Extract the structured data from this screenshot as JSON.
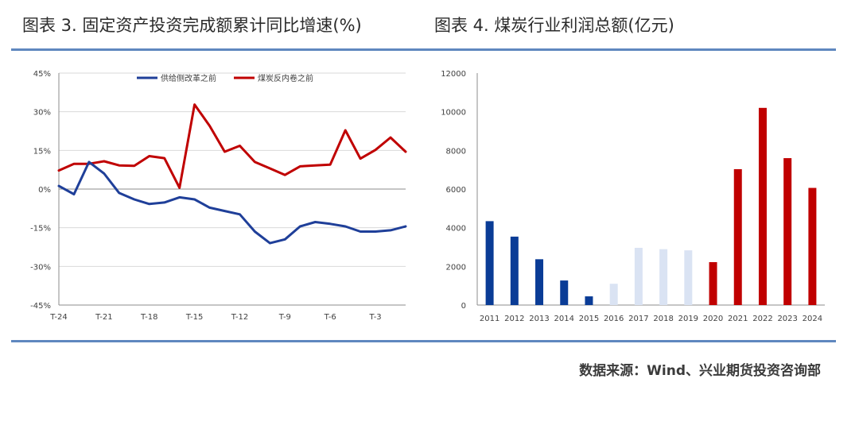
{
  "titles": {
    "left": "图表 3. 固定资产投资完成额累计同比增速(%)",
    "right": "图表 4. 煤炭行业利润总额(亿元)"
  },
  "source": "数据来源：Wind、兴业期货投资咨询部",
  "chart_data": [
    {
      "type": "line",
      "title": "",
      "xlabel": "",
      "ylabel": "",
      "ylim": [
        -45,
        45
      ],
      "y_ticks": [
        "45%",
        "30%",
        "15%",
        "0%",
        "-15%",
        "-30%",
        "-45%"
      ],
      "y_tick_values": [
        45,
        30,
        15,
        0,
        -15,
        -30,
        -45
      ],
      "x_ticks": [
        "T-24",
        "T-21",
        "T-18",
        "T-15",
        "T-12",
        "T-9",
        "T-6",
        "T-3"
      ],
      "x_tick_values": [
        -24,
        -21,
        -18,
        -15,
        -12,
        -9,
        -6,
        -3
      ],
      "xlim": [
        -24,
        -1
      ],
      "grid": "horizontal",
      "legend_position": "top",
      "series": [
        {
          "name": "供给侧改革之前",
          "color": "#1f3f99",
          "x": [
            -24,
            -23,
            -22,
            -21,
            -20,
            -19,
            -18,
            -17,
            -16,
            -15,
            -14,
            -13,
            -12,
            -11,
            -10,
            -9,
            -8,
            -7,
            -6,
            -5,
            -4,
            -3,
            -2,
            -1
          ],
          "values": [
            1.2,
            -2.0,
            10.5,
            6.0,
            -1.5,
            -4.0,
            -5.8,
            -5.2,
            -3.2,
            -4.0,
            -7.2,
            -8.5,
            -9.8,
            -16.5,
            -21.0,
            -19.5,
            -14.5,
            -12.8,
            -13.5,
            -14.5,
            -16.5,
            -16.5,
            -16.0,
            -14.5
          ]
        },
        {
          "name": "煤炭反内卷之前",
          "color": "#c00000",
          "x": [
            -24,
            -23,
            -22,
            -21,
            -20,
            -19,
            -18,
            -17,
            -16,
            -15,
            -14,
            -13,
            -12,
            -11,
            -10,
            -9,
            -8,
            -7,
            -6,
            -5,
            -4,
            -3,
            -2,
            -1
          ],
          "values": [
            7.2,
            9.8,
            9.8,
            10.8,
            9.2,
            9.0,
            12.8,
            12.0,
            0.5,
            32.8,
            24.5,
            14.5,
            16.8,
            10.5,
            8.0,
            5.5,
            8.8,
            9.2,
            9.5,
            22.8,
            11.8,
            15.2,
            20.0,
            14.5
          ]
        }
      ]
    },
    {
      "type": "bar",
      "title": "",
      "xlabel": "",
      "ylabel": "",
      "ylim": [
        0,
        12000
      ],
      "y_ticks": [
        "12000",
        "10000",
        "8000",
        "6000",
        "4000",
        "2000",
        "0"
      ],
      "y_tick_values": [
        12000,
        10000,
        8000,
        6000,
        4000,
        2000,
        0
      ],
      "categories": [
        "2011",
        "2012",
        "2013",
        "2014",
        "2015",
        "2016",
        "2017",
        "2018",
        "2019",
        "2020",
        "2021",
        "2022",
        "2023",
        "2024"
      ],
      "values": [
        4340,
        3540,
        2370,
        1270,
        450,
        1100,
        2960,
        2890,
        2830,
        2220,
        7030,
        10200,
        7600,
        6060
      ],
      "bar_colors": [
        "#0a3c96",
        "#0a3c96",
        "#0a3c96",
        "#0a3c96",
        "#0a3c96",
        "#dae3f3",
        "#dae3f3",
        "#dae3f3",
        "#dae3f3",
        "#c00000",
        "#c00000",
        "#c00000",
        "#c00000",
        "#c00000"
      ],
      "grid": "none"
    }
  ]
}
